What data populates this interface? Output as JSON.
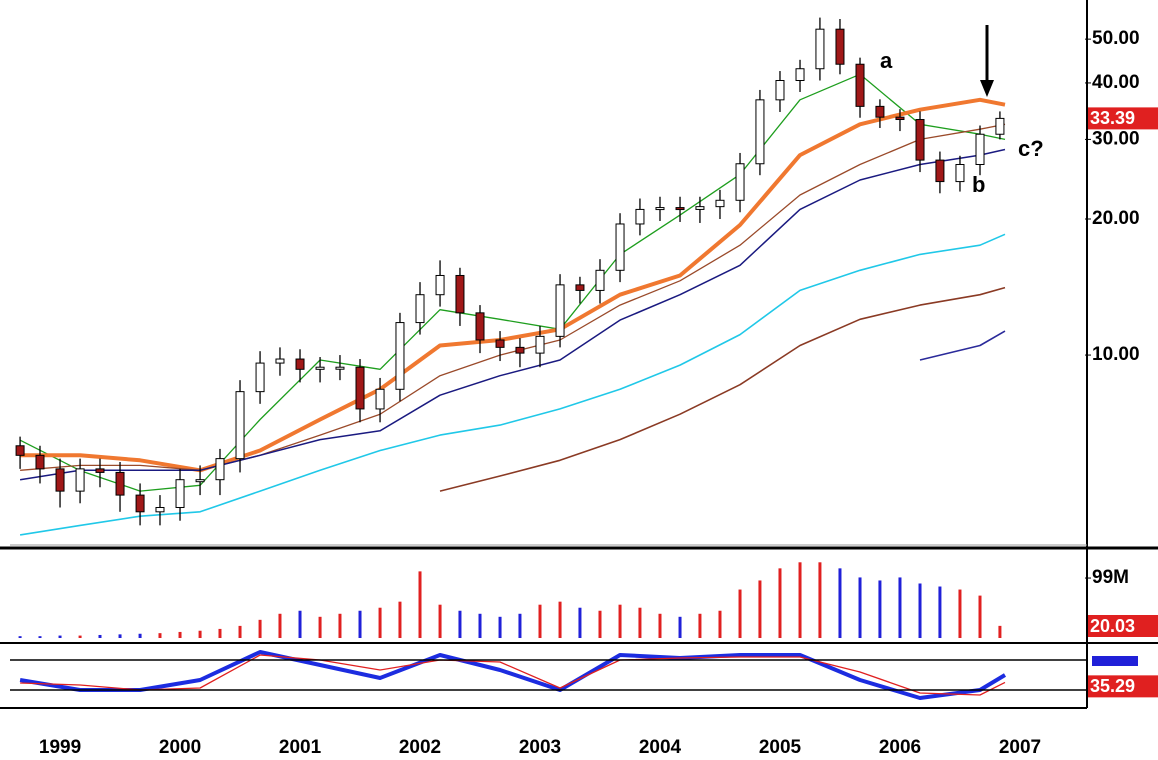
{
  "chart_data": [
    {
      "type": "candlestick",
      "log_scale": true,
      "xlim": [
        1998.583,
        2007.542
      ],
      "ylim": [
        3.8,
        58
      ],
      "yticks": [
        {
          "value": 10,
          "label": "10.00"
        },
        {
          "value": 20,
          "label": "20.00"
        },
        {
          "value": 30,
          "label": "30.00"
        },
        {
          "value": 40,
          "label": "40.00"
        },
        {
          "value": 50,
          "label": "50.00"
        }
      ],
      "up_color": "#ffffff",
      "down_color": "#a01818",
      "candles": {
        "x": [
          1998.667,
          1998.833,
          1999.0,
          1999.167,
          1999.333,
          1999.5,
          1999.667,
          1999.833,
          2000.0,
          2000.167,
          2000.333,
          2000.5,
          2000.667,
          2000.833,
          2001.0,
          2001.167,
          2001.333,
          2001.5,
          2001.667,
          2001.833,
          2002.0,
          2002.167,
          2002.333,
          2002.5,
          2002.667,
          2002.833,
          2003.0,
          2003.167,
          2003.333,
          2003.5,
          2003.667,
          2003.833,
          2004.0,
          2004.167,
          2004.333,
          2004.5,
          2004.667,
          2004.833,
          2005.0,
          2005.167,
          2005.333,
          2005.5,
          2005.667,
          2005.833,
          2006.0,
          2006.167,
          2006.333,
          2006.5,
          2006.667,
          2006.833
        ],
        "open": [
          6.3,
          6.0,
          5.6,
          5.0,
          5.6,
          5.5,
          4.9,
          4.5,
          4.6,
          5.3,
          5.3,
          5.9,
          8.3,
          9.6,
          9.8,
          9.3,
          9.4,
          9.4,
          7.6,
          8.4,
          11.8,
          13.6,
          15.0,
          12.4,
          10.8,
          10.4,
          10.1,
          11.0,
          14.3,
          13.9,
          15.4,
          19.5,
          21.0,
          21.2,
          21.0,
          21.3,
          22.0,
          26.5,
          36.7,
          40.5,
          43.0,
          52.6,
          44.0,
          35.5,
          33.6,
          33.2,
          27.0,
          24.2,
          26.4,
          30.8
        ],
        "high": [
          6.6,
          6.3,
          5.9,
          5.9,
          5.9,
          5.8,
          5.2,
          4.9,
          5.6,
          5.7,
          6.2,
          8.8,
          10.2,
          10.4,
          10.3,
          9.9,
          10.0,
          9.8,
          8.9,
          12.4,
          14.5,
          16.2,
          15.6,
          12.9,
          11.3,
          10.9,
          11.6,
          15.1,
          14.9,
          16.3,
          20.6,
          22.2,
          22.4,
          22.4,
          22.4,
          23.2,
          28.0,
          38.6,
          42.5,
          45.0,
          55.8,
          55.4,
          45.5,
          36.8,
          35.0,
          34.6,
          28.2,
          27.6,
          32.2,
          34.6
        ],
        "low": [
          5.6,
          5.2,
          4.6,
          4.7,
          5.1,
          4.5,
          4.2,
          4.2,
          4.3,
          4.9,
          4.9,
          5.5,
          7.8,
          9.0,
          8.7,
          8.7,
          8.8,
          7.1,
          7.1,
          7.9,
          11.1,
          12.8,
          11.6,
          10.1,
          9.7,
          9.4,
          9.4,
          10.4,
          13.0,
          13.0,
          14.5,
          18.4,
          19.8,
          19.7,
          19.6,
          20.0,
          20.7,
          25.0,
          34.5,
          38.2,
          40.5,
          41.8,
          33.5,
          31.8,
          31.3,
          25.4,
          22.8,
          23.0,
          25.0,
          30.0
        ],
        "close": [
          6.0,
          5.6,
          5.0,
          5.6,
          5.5,
          4.9,
          4.5,
          4.6,
          5.3,
          5.3,
          5.9,
          8.3,
          9.6,
          9.8,
          9.3,
          9.4,
          9.4,
          7.6,
          8.4,
          11.8,
          13.6,
          15.0,
          12.4,
          10.8,
          10.4,
          10.1,
          11.0,
          14.3,
          13.9,
          15.4,
          19.5,
          21.0,
          21.2,
          21.0,
          21.3,
          22.0,
          26.5,
          36.7,
          40.5,
          43.0,
          52.6,
          44.0,
          35.5,
          33.6,
          33.2,
          27.0,
          24.2,
          26.4,
          30.8,
          33.39
        ]
      },
      "overlay_x": [
        1998.667,
        1999.167,
        1999.667,
        2000.167,
        2000.667,
        2001.167,
        2001.667,
        2002.167,
        2002.667,
        2003.167,
        2003.667,
        2004.167,
        2004.667,
        2005.167,
        2005.667,
        2006.167,
        2006.667,
        2006.875
      ],
      "series": [
        {
          "color": "#1e9e1e",
          "width": 1.3,
          "values": [
            6.48,
            5.55,
            5.0,
            5.15,
            7.2,
            9.75,
            9.3,
            12.6,
            12.0,
            11.4,
            16.7,
            20.4,
            25.1,
            36.7,
            41.8,
            32.4,
            30.8,
            30.0
          ]
        },
        {
          "color": "#f07830",
          "width": 4,
          "values": [
            6.0,
            6.0,
            5.85,
            5.56,
            6.15,
            7.2,
            8.4,
            10.5,
            10.8,
            11.4,
            13.6,
            15.0,
            19.4,
            27.7,
            32.4,
            34.9,
            36.7,
            35.8
          ]
        },
        {
          "color": "#9a4a2a",
          "width": 1.3,
          "values": [
            5.56,
            5.7,
            5.7,
            5.56,
            6.0,
            6.65,
            7.4,
            9.0,
            10.0,
            10.8,
            12.9,
            14.6,
            17.5,
            22.6,
            26.4,
            30.0,
            31.6,
            32.4
          ]
        },
        {
          "color": "#1a1a80",
          "width": 1.5,
          "values": [
            5.3,
            5.56,
            5.56,
            5.56,
            6.0,
            6.5,
            6.8,
            8.15,
            9.0,
            9.75,
            11.95,
            13.6,
            15.8,
            21.0,
            24.4,
            26.4,
            27.7,
            28.5
          ]
        },
        {
          "color": "#20c8e8",
          "width": 1.6,
          "values": [
            4.0,
            4.2,
            4.4,
            4.5,
            5.0,
            5.56,
            6.15,
            6.65,
            7.0,
            7.6,
            8.4,
            9.5,
            11.1,
            13.9,
            15.4,
            16.7,
            17.5,
            18.5
          ]
        },
        {
          "color": "#8a3a24",
          "width": 1.6,
          "values": [
            null,
            null,
            null,
            null,
            null,
            null,
            null,
            5.0,
            5.4,
            5.85,
            6.5,
            7.4,
            8.6,
            10.5,
            12.0,
            12.9,
            13.6,
            14.1
          ]
        },
        {
          "color": "#2a2a9a",
          "width": 1.6,
          "values": [
            null,
            null,
            null,
            null,
            null,
            null,
            null,
            null,
            null,
            null,
            null,
            null,
            null,
            null,
            null,
            9.75,
            10.5,
            11.3
          ]
        }
      ],
      "annotations": [
        "a",
        "b",
        "c?"
      ]
    },
    {
      "type": "bar",
      "xlim": [
        1998.583,
        2007.542
      ],
      "ylim": [
        0,
        142
      ],
      "yticks": [
        {
          "value": 99,
          "label": "99M"
        }
      ],
      "up_color": "#e02020",
      "down_color": "#2020d8",
      "x": [
        1998.667,
        1998.833,
        1999.0,
        1999.167,
        1999.333,
        1999.5,
        1999.667,
        1999.833,
        2000.0,
        2000.167,
        2000.333,
        2000.5,
        2000.667,
        2000.833,
        2001.0,
        2001.167,
        2001.333,
        2001.5,
        2001.667,
        2001.833,
        2002.0,
        2002.167,
        2002.333,
        2002.5,
        2002.667,
        2002.833,
        2003.0,
        2003.167,
        2003.333,
        2003.5,
        2003.667,
        2003.833,
        2004.0,
        2004.167,
        2004.333,
        2004.5,
        2004.667,
        2004.833,
        2005.0,
        2005.167,
        2005.333,
        2005.5,
        2005.667,
        2005.833,
        2006.0,
        2006.167,
        2006.333,
        2006.5,
        2006.667,
        2006.833
      ],
      "values": [
        3,
        3,
        4,
        4,
        5,
        6,
        7,
        8,
        10,
        12,
        15,
        20,
        30,
        40,
        45,
        35,
        40,
        45,
        50,
        60,
        110,
        55,
        45,
        40,
        35,
        40,
        55,
        60,
        50,
        45,
        55,
        50,
        40,
        35,
        40,
        45,
        80,
        95,
        115,
        125,
        125,
        115,
        100,
        95,
        100,
        90,
        85,
        80,
        70,
        20.03
      ]
    },
    {
      "type": "line",
      "xlim": [
        1998.583,
        2007.542
      ],
      "ylim": [
        -10,
        110
      ],
      "yticks": [
        20,
        80
      ],
      "xticks": [
        1999,
        2000,
        2001,
        2002,
        2003,
        2004,
        2005,
        2006,
        2007
      ],
      "x": [
        1998.667,
        1999.167,
        1999.667,
        2000.167,
        2000.667,
        2001.167,
        2001.667,
        2002.167,
        2002.667,
        2003.167,
        2003.667,
        2004.167,
        2004.667,
        2005.167,
        2005.667,
        2006.167,
        2006.667,
        2006.875
      ],
      "series": [
        {
          "color": "#1c2ce0",
          "width": 4,
          "values": [
            40,
            20,
            20,
            40,
            96,
            70,
            44,
            90,
            60,
            20,
            90,
            84,
            90,
            90,
            40,
            4,
            20,
            50
          ]
        },
        {
          "color": "#e02020",
          "width": 1.3,
          "values": [
            34,
            30,
            20,
            24,
            90,
            80,
            60,
            80,
            76,
            24,
            80,
            84,
            86,
            86,
            56,
            14,
            10,
            35.29
          ]
        }
      ]
    }
  ]
}
